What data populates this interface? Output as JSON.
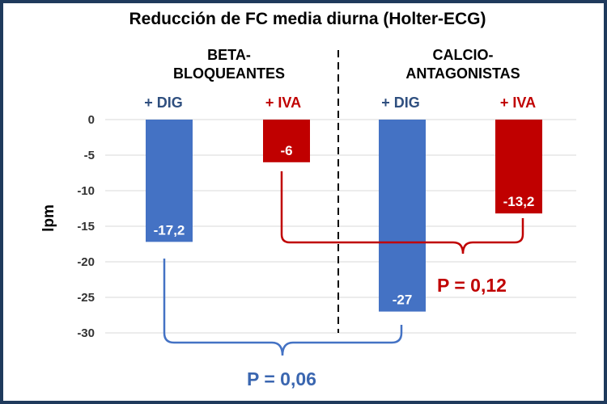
{
  "colors": {
    "frame": "#1f3a5c",
    "dig": "#4472c4",
    "dig_dark": "#2f5bb0",
    "iva": "#c00000",
    "grid": "#d9d9d9",
    "divider": "#000000"
  },
  "chart_data": {
    "type": "bar",
    "title": "Reducción de FC media diurna (Holter-ECG)",
    "ylabel": "lpm",
    "ylim": [
      -30,
      0
    ],
    "yticks": [
      "0",
      "-5",
      "-10",
      "-15",
      "-20",
      "-25",
      "-30"
    ],
    "grid": true,
    "groups": [
      {
        "label_line1": "BETA-",
        "label_line2": "BLOQUEANTES",
        "bars": [
          {
            "name": "+ DIG",
            "value": -17.2,
            "label": "-17,2",
            "color": "#4472c4"
          },
          {
            "name": "+ IVA",
            "value": -6,
            "label": "-6",
            "color": "#c00000"
          }
        ]
      },
      {
        "label_line1": "CALCIO-",
        "label_line2": "ANTAGONISTAS",
        "bars": [
          {
            "name": "+ DIG",
            "value": -27,
            "label": "-27",
            "color": "#4472c4"
          },
          {
            "name": "+ IVA",
            "value": -13.2,
            "label": "-13,2",
            "color": "#c00000"
          }
        ]
      }
    ],
    "comparisons": [
      {
        "text": "P = 0,06",
        "between": [
          "+ DIG (BETA-BLOQUEANTES)",
          "+ DIG (CALCIO-ANTAGONISTAS)"
        ],
        "color": "#4472c4"
      },
      {
        "text": "P = 0,12",
        "between": [
          "+ IVA (BETA-BLOQUEANTES)",
          "+ IVA (CALCIO-ANTAGONISTAS)"
        ],
        "color": "#c00000"
      }
    ]
  }
}
